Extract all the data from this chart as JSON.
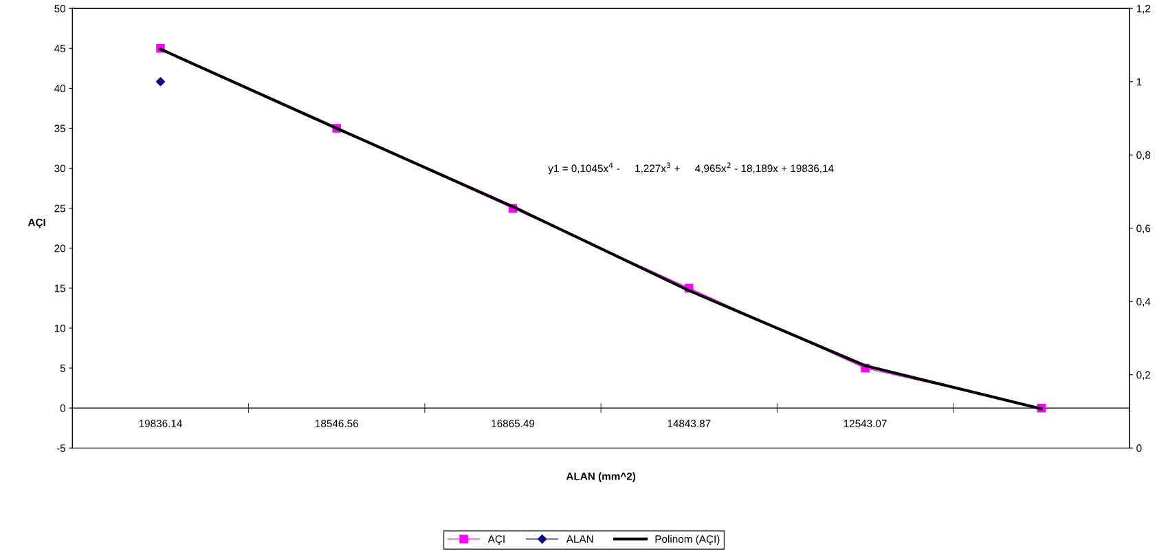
{
  "chart_data": {
    "type": "line",
    "xlabel": "ALAN (mm^2)",
    "ylabel": "AÇI",
    "categories": [
      "19836.14",
      "18546.56",
      "16865.49",
      "14843.87",
      "12543.07",
      null
    ],
    "series": [
      {
        "name": "AÇI",
        "color": "#ff00ff",
        "marker": "square",
        "values": [
          45,
          35,
          25,
          15,
          5,
          0
        ]
      },
      {
        "name": "ALAN",
        "color": "#000080",
        "marker": "diamond",
        "axis": "y2",
        "values": [
          1,
          null,
          null,
          null,
          null,
          null
        ]
      },
      {
        "name": "Polinom (AÇI)",
        "color": "#000000",
        "marker": "none",
        "values": [
          44.9,
          35,
          25.2,
          14.7,
          5.3,
          -0.1
        ]
      }
    ],
    "ylim": [
      -5,
      50
    ],
    "yticks": [
      -5,
      0,
      5,
      10,
      15,
      20,
      25,
      30,
      35,
      40,
      45,
      50
    ],
    "y2lim": [
      0,
      1.2
    ],
    "y2ticks": [
      0,
      {
        "value": 0.2,
        "label": "0,2"
      },
      {
        "value": 0.4,
        "label": "0,4"
      },
      {
        "value": 0.6,
        "label": "0,6"
      },
      {
        "value": 0.8,
        "label": "0,8"
      },
      1,
      {
        "value": 1.2,
        "label": "1,2"
      }
    ],
    "annotations": [
      "y1 = 0,1045x$^{4}$ -     1,227x$^{3}$ +     4,965x$^{2}$ - 18,189x + 19836,14"
    ],
    "grid": false,
    "legend": "bottom"
  }
}
